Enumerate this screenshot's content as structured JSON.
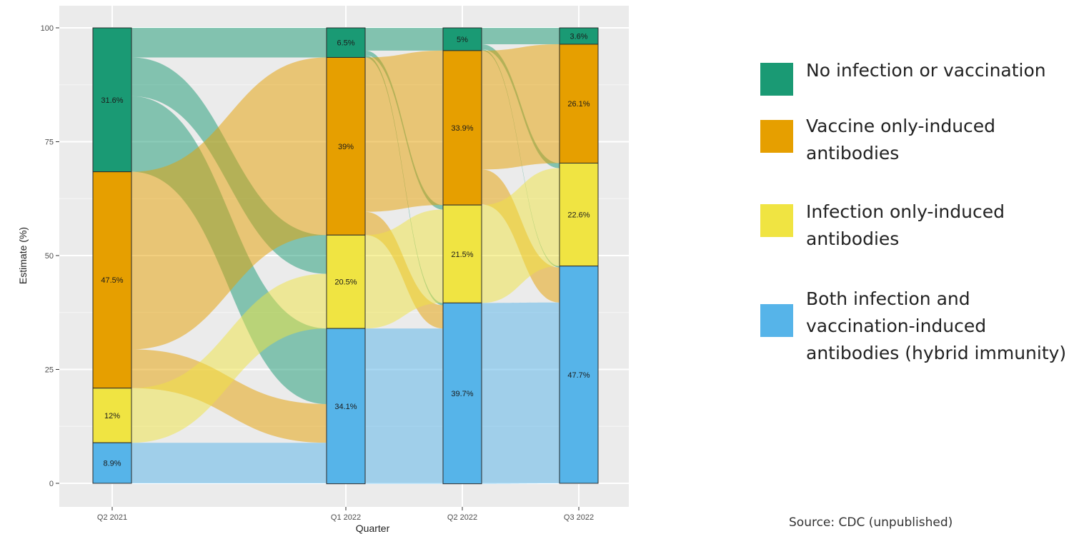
{
  "chart_data": {
    "type": "alluvial",
    "ylabel": "Estimate (%)",
    "xlabel": "Quarter",
    "ylim": [
      0,
      100
    ],
    "yticks": [
      "0",
      "25",
      "50",
      "75",
      "100"
    ],
    "ytick_values": [
      0,
      25,
      50,
      75,
      100
    ],
    "categories": [
      "Q2 2021",
      "Q1 2022",
      "Q2 2022",
      "Q3 2022"
    ],
    "grid": true,
    "legend_placement": "right",
    "series": [
      {
        "name": "No infection or vaccination",
        "color": "#1a9a74",
        "values": [
          31.6,
          6.5,
          5,
          3.6
        ],
        "labels": [
          "31.6%",
          "6.5%",
          "5%",
          "3.6%"
        ]
      },
      {
        "name": "Vaccine only-induced antibodies",
        "color": "#e69f00",
        "values": [
          47.5,
          39,
          33.9,
          26.1
        ],
        "labels": [
          "47.5%",
          "39%",
          "33.9%",
          "26.1%"
        ]
      },
      {
        "name": "Infection only-induced antibodies",
        "color": "#f0e442",
        "values": [
          12,
          20.5,
          21.5,
          22.6
        ],
        "labels": [
          "12%",
          "20.5%",
          "21.5%",
          "22.6%"
        ]
      },
      {
        "name": "Both infection and vaccination-induced antibodies (hybrid immunity)",
        "color": "#56b4e9",
        "values": [
          8.9,
          34.1,
          39.7,
          47.7
        ],
        "labels": [
          "8.9%",
          "34.1%",
          "39.7%",
          "47.7%"
        ]
      }
    ]
  },
  "legend": {
    "items": [
      {
        "lines": [
          "No infection or vaccination"
        ],
        "color": "#1a9a74"
      },
      {
        "lines": [
          "Vaccine only-induced",
          "antibodies"
        ],
        "color": "#e69f00"
      },
      {
        "lines": [
          "Infection only-induced",
          "antibodies"
        ],
        "color": "#f0e442"
      },
      {
        "lines": [
          "Both infection and",
          "vaccination-induced",
          "antibodies (hybrid immunity)"
        ],
        "color": "#56b4e9"
      }
    ]
  },
  "source": "Source: CDC (unpublished)"
}
